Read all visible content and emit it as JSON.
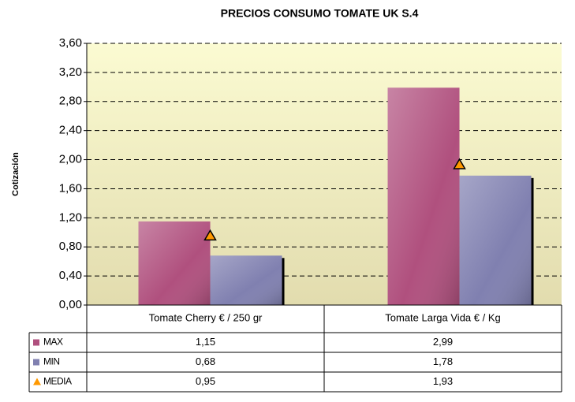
{
  "chart_data": {
    "type": "bar",
    "title": "PRECIOS CONSUMO TOMATE UK S.4",
    "y_label": "Cotización",
    "categories": [
      "Tomate Cherry  € / 250 gr",
      "Tomate Larga Vida  € / Kg"
    ],
    "series": [
      {
        "name": "MAX",
        "color": "#b0507e",
        "values": [
          1.15,
          2.99
        ],
        "value_labels": [
          "1,15",
          "2,99"
        ]
      },
      {
        "name": "MIN",
        "color": "#8080b0",
        "values": [
          0.68,
          1.78
        ],
        "value_labels": [
          "0,68",
          "1,78"
        ]
      },
      {
        "name": "MEDIA",
        "color": "#ff9900",
        "marker": "triangle",
        "values": [
          0.95,
          1.93
        ],
        "value_labels": [
          "0,95",
          "1,93"
        ]
      }
    ],
    "ylim": [
      0,
      3.6
    ],
    "yticks": [
      {
        "value": 0,
        "label": "0,00"
      },
      {
        "value": 0.4,
        "label": "0,40"
      },
      {
        "value": 0.8,
        "label": "0,80"
      },
      {
        "value": 1.2,
        "label": "1,20"
      },
      {
        "value": 1.6,
        "label": "1,60"
      },
      {
        "value": 2.0,
        "label": "2,00"
      },
      {
        "value": 2.4,
        "label": "2,40"
      },
      {
        "value": 2.8,
        "label": "2,80"
      },
      {
        "value": 3.2,
        "label": "3,20"
      },
      {
        "value": 3.6,
        "label": "3,60"
      }
    ],
    "grid": true
  }
}
